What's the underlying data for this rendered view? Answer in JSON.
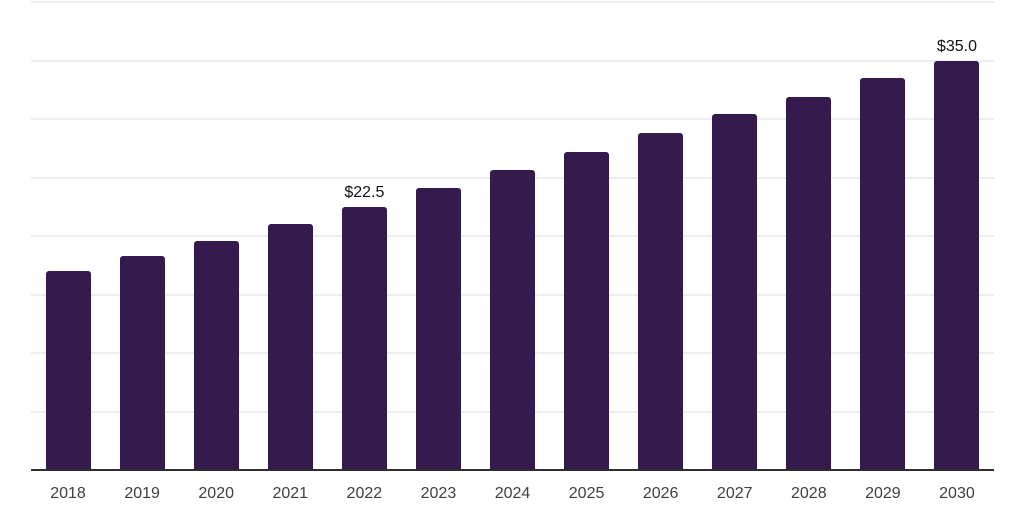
{
  "chart_data": {
    "type": "bar",
    "categories": [
      "2018",
      "2019",
      "2020",
      "2021",
      "2022",
      "2023",
      "2024",
      "2025",
      "2026",
      "2027",
      "2028",
      "2029",
      "2030"
    ],
    "values": [
      17.0,
      18.3,
      19.6,
      21.0,
      22.5,
      24.1,
      25.6,
      27.2,
      28.8,
      30.4,
      31.9,
      33.5,
      35.0
    ],
    "data_labels": {
      "2022": "$22.5",
      "2030": "$35.0"
    },
    "title": "",
    "xlabel": "",
    "ylabel": "",
    "ylim": [
      0,
      40
    ],
    "grid_step": 5,
    "grid": true,
    "legend": false,
    "colors": {
      "bar": "#351a4e",
      "gridline": "#eeeef1",
      "axis_line": "#2e2e2e",
      "tick_label": "#3f3f3f",
      "data_label": "#111111",
      "background": "#ffffff"
    }
  }
}
